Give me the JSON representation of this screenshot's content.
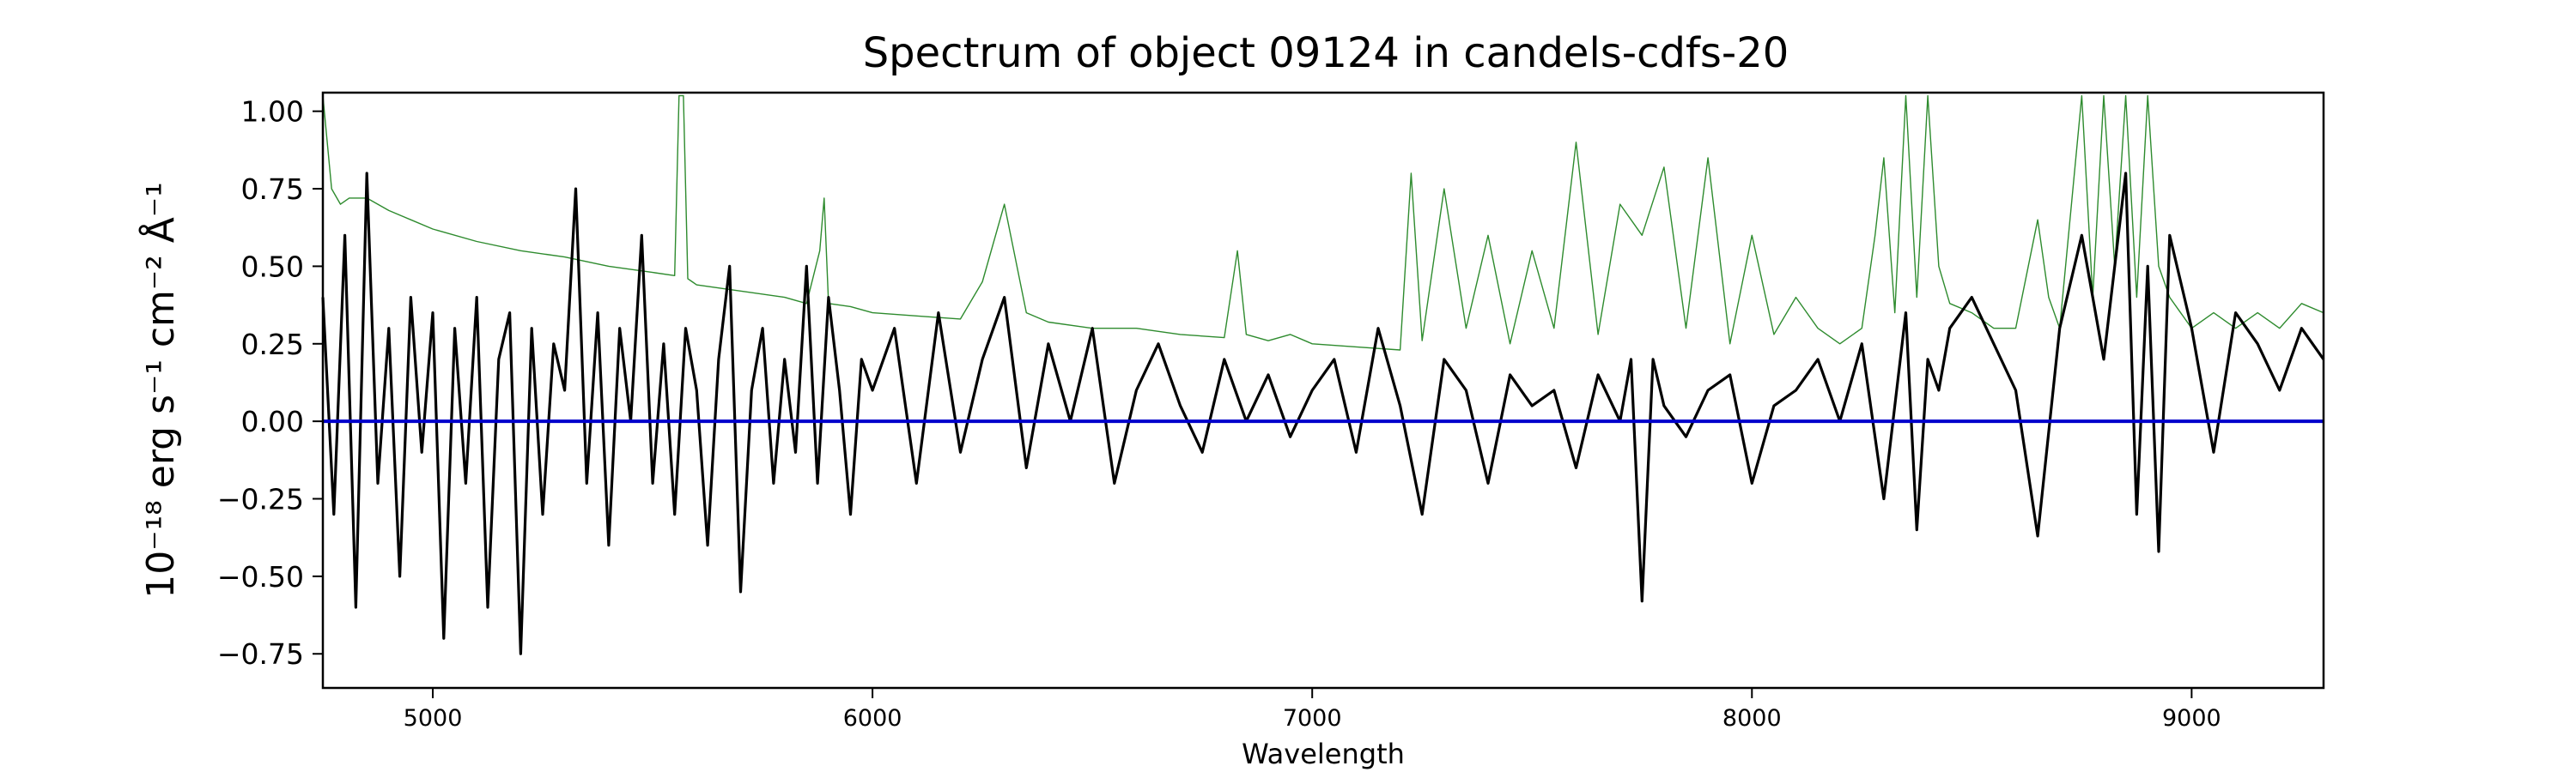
{
  "chart_data": {
    "type": "line",
    "title": "Spectrum of object 09124 in candels-cdfs-20",
    "xlabel": "Wavelength",
    "ylabel": "10⁻¹⁸ erg s⁻¹ cm⁻² Å⁻¹",
    "xlim": [
      4750,
      9300
    ],
    "ylim": [
      -0.86,
      1.06
    ],
    "xticks": [
      5000,
      6000,
      7000,
      8000,
      9000
    ],
    "yticks": [
      -0.75,
      -0.5,
      -0.25,
      0.0,
      0.25,
      0.5,
      0.75,
      1.0
    ],
    "ytick_labels": [
      "−0.75",
      "−0.50",
      "−0.25",
      "0.00",
      "0.25",
      "0.50",
      "0.75",
      "1.00"
    ],
    "grid": false,
    "series": [
      {
        "color": "#000000",
        "x": [
          4750,
          4775,
          4800,
          4825,
          4850,
          4875,
          4900,
          4925,
          4950,
          4975,
          5000,
          5025,
          5050,
          5075,
          5100,
          5125,
          5150,
          5175,
          5200,
          5225,
          5250,
          5275,
          5300,
          5325,
          5350,
          5375,
          5400,
          5425,
          5450,
          5475,
          5500,
          5525,
          5550,
          5575,
          5600,
          5625,
          5650,
          5675,
          5700,
          5725,
          5750,
          5775,
          5800,
          5825,
          5850,
          5875,
          5900,
          5925,
          5950,
          5975,
          6000,
          6050,
          6100,
          6150,
          6200,
          6250,
          6300,
          6350,
          6400,
          6450,
          6500,
          6550,
          6600,
          6650,
          6700,
          6750,
          6800,
          6850,
          6900,
          6950,
          7000,
          7050,
          7100,
          7150,
          7200,
          7250,
          7300,
          7350,
          7400,
          7450,
          7500,
          7550,
          7600,
          7650,
          7700,
          7725,
          7750,
          7775,
          7800,
          7850,
          7900,
          7950,
          8000,
          8050,
          8100,
          8150,
          8200,
          8250,
          8300,
          8350,
          8375,
          8400,
          8425,
          8450,
          8500,
          8550,
          8600,
          8650,
          8700,
          8750,
          8800,
          8850,
          8875,
          8900,
          8925,
          8950,
          9000,
          9050,
          9100,
          9150,
          9200,
          9250,
          9300
        ],
        "y": [
          0.4,
          -0.3,
          0.6,
          -0.6,
          0.8,
          -0.2,
          0.3,
          -0.5,
          0.4,
          -0.1,
          0.35,
          -0.7,
          0.3,
          -0.2,
          0.4,
          -0.6,
          0.2,
          0.35,
          -0.75,
          0.3,
          -0.3,
          0.25,
          0.1,
          0.75,
          -0.2,
          0.35,
          -0.4,
          0.3,
          0.0,
          0.6,
          -0.2,
          0.25,
          -0.3,
          0.3,
          0.1,
          -0.4,
          0.2,
          0.5,
          -0.55,
          0.1,
          0.3,
          -0.2,
          0.2,
          -0.1,
          0.5,
          -0.2,
          0.4,
          0.1,
          -0.3,
          0.2,
          0.1,
          0.3,
          -0.2,
          0.35,
          -0.1,
          0.2,
          0.4,
          -0.15,
          0.25,
          0.0,
          0.3,
          -0.2,
          0.1,
          0.25,
          0.05,
          -0.1,
          0.2,
          0.0,
          0.15,
          -0.05,
          0.1,
          0.2,
          -0.1,
          0.3,
          0.05,
          -0.3,
          0.2,
          0.1,
          -0.2,
          0.15,
          0.05,
          0.1,
          -0.15,
          0.15,
          0.0,
          0.2,
          -0.58,
          0.2,
          0.05,
          -0.05,
          0.1,
          0.15,
          -0.2,
          0.05,
          0.1,
          0.2,
          0.0,
          0.25,
          -0.25,
          0.35,
          -0.35,
          0.2,
          0.1,
          0.3,
          0.4,
          0.25,
          0.1,
          -0.37,
          0.3,
          0.6,
          0.2,
          0.8,
          -0.3,
          0.5,
          -0.42,
          0.6,
          0.3,
          -0.1,
          0.35,
          0.25,
          0.1,
          0.3,
          0.2
        ]
      },
      {
        "color": "#2e8b2e",
        "x": [
          4750,
          4770,
          4790,
          4810,
          4850,
          4900,
          4950,
          5000,
          5100,
          5200,
          5300,
          5400,
          5500,
          5550,
          5560,
          5570,
          5580,
          5590,
          5600,
          5700,
          5800,
          5850,
          5880,
          5890,
          5900,
          5950,
          6000,
          6100,
          6200,
          6250,
          6300,
          6350,
          6400,
          6500,
          6600,
          6700,
          6800,
          6830,
          6850,
          6900,
          6950,
          7000,
          7100,
          7200,
          7225,
          7250,
          7300,
          7350,
          7400,
          7450,
          7500,
          7550,
          7600,
          7650,
          7700,
          7750,
          7800,
          7850,
          7900,
          7950,
          8000,
          8050,
          8100,
          8150,
          8200,
          8250,
          8280,
          8300,
          8325,
          8350,
          8375,
          8400,
          8425,
          8450,
          8500,
          8550,
          8600,
          8650,
          8675,
          8700,
          8750,
          8775,
          8800,
          8825,
          8850,
          8875,
          8900,
          8925,
          8950,
          9000,
          9050,
          9100,
          9150,
          9200,
          9250,
          9300
        ],
        "y": [
          1.05,
          0.75,
          0.7,
          0.72,
          0.72,
          0.68,
          0.65,
          0.62,
          0.58,
          0.55,
          0.53,
          0.5,
          0.48,
          0.47,
          1.05,
          1.05,
          0.46,
          0.45,
          0.44,
          0.42,
          0.4,
          0.38,
          0.55,
          0.72,
          0.38,
          0.37,
          0.35,
          0.34,
          0.33,
          0.45,
          0.7,
          0.35,
          0.32,
          0.3,
          0.3,
          0.28,
          0.27,
          0.55,
          0.28,
          0.26,
          0.28,
          0.25,
          0.24,
          0.23,
          0.8,
          0.26,
          0.75,
          0.3,
          0.6,
          0.25,
          0.55,
          0.3,
          0.9,
          0.28,
          0.7,
          0.6,
          0.82,
          0.3,
          0.85,
          0.25,
          0.6,
          0.28,
          0.4,
          0.3,
          0.25,
          0.3,
          0.6,
          0.85,
          0.35,
          1.05,
          0.4,
          1.05,
          0.5,
          0.38,
          0.35,
          0.3,
          0.3,
          0.65,
          0.4,
          0.3,
          1.05,
          0.4,
          1.05,
          0.5,
          1.05,
          0.4,
          1.05,
          0.5,
          0.4,
          0.3,
          0.35,
          0.3,
          0.35,
          0.3,
          0.38,
          0.35
        ]
      },
      {
        "color": "#0000cc",
        "x": [
          4750,
          9300
        ],
        "y": [
          0.0,
          0.0
        ]
      }
    ]
  }
}
